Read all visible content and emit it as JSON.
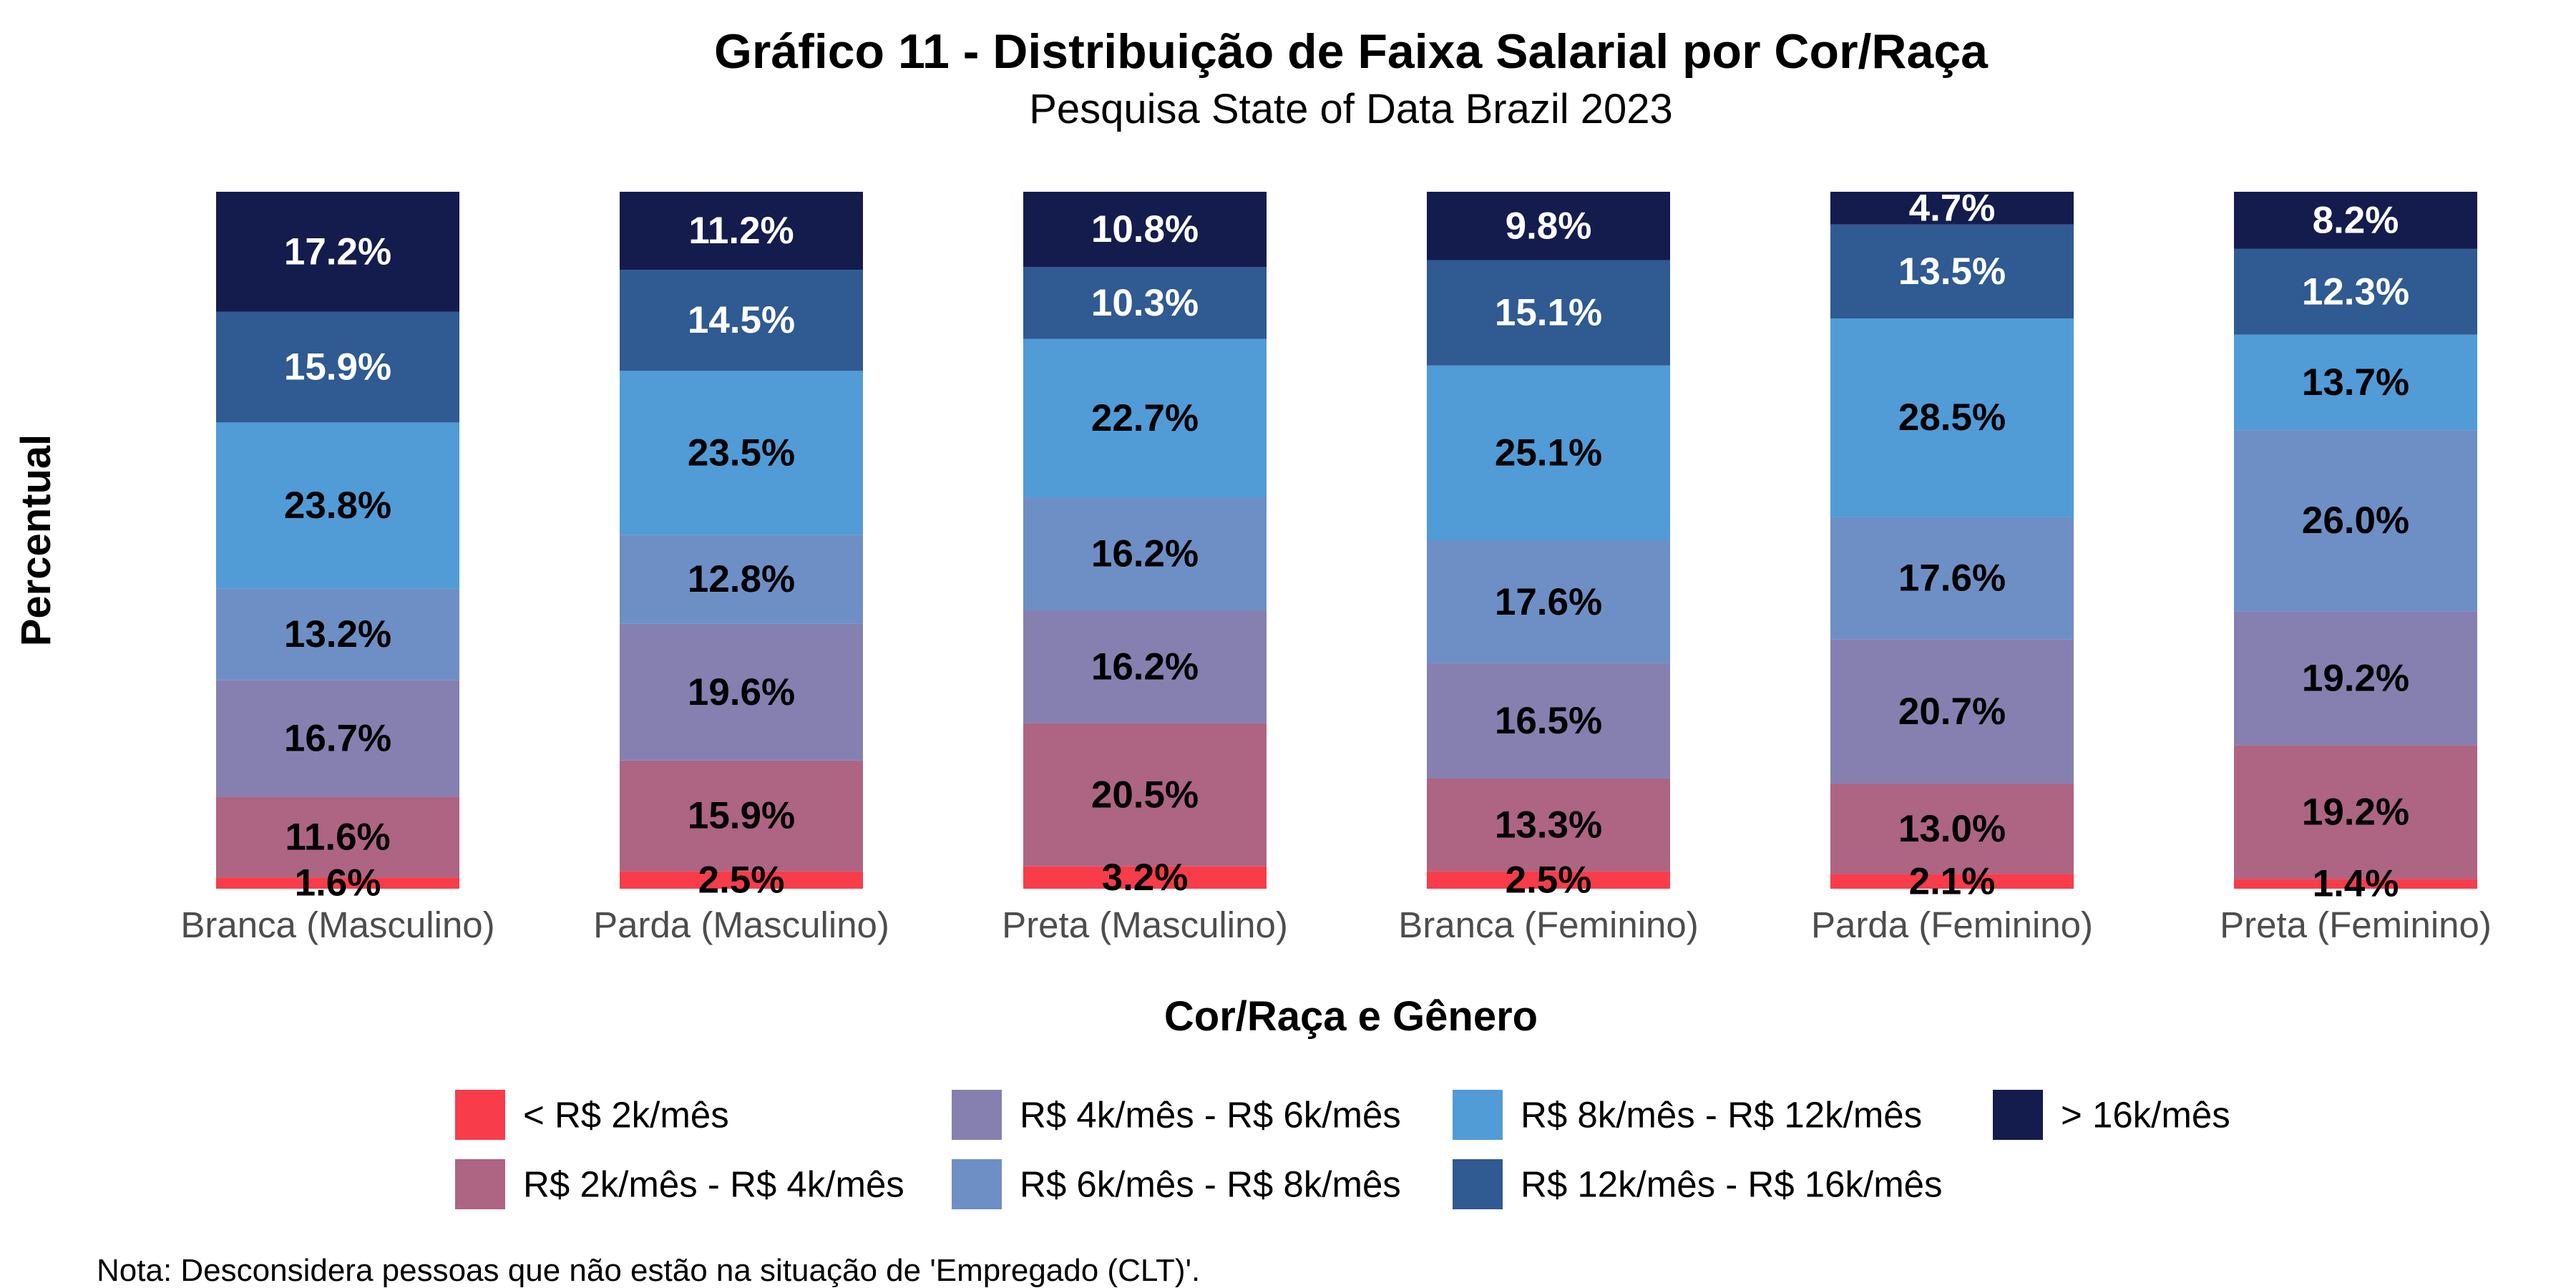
{
  "chart_data": {
    "type": "bar",
    "stacked": true,
    "percent_stacked": true,
    "title": "Gráfico 11 - Distribuição de Faixa Salarial por Cor/Raça",
    "subtitle": "Pesquisa State of Data Brazil 2023",
    "xlabel": "Cor/Raça e Gênero",
    "ylabel": "Percentual",
    "note": "Nota: Desconsidera pessoas que não estão na situação de 'Empregado (CLT)'.",
    "ylim": [
      0,
      100
    ],
    "grid": false,
    "legend_position": "bottom",
    "categories": [
      "Branca (Masculino)",
      "Parda (Masculino)",
      "Preta (Masculino)",
      "Branca (Feminino)",
      "Parda (Feminino)",
      "Preta (Feminino)"
    ],
    "series": [
      {
        "name": "< R$ 2k/mês",
        "color": "#F83C4A",
        "label_color": "#000000",
        "values": [
          1.6,
          2.5,
          3.2,
          2.5,
          2.1,
          1.4
        ]
      },
      {
        "name": "R$ 2k/mês - R$ 4k/mês",
        "color": "#AE6483",
        "label_color": "#000000",
        "values": [
          11.6,
          15.9,
          20.5,
          13.3,
          13.0,
          19.2
        ]
      },
      {
        "name": "R$ 4k/mês - R$ 6k/mês",
        "color": "#8580B0",
        "label_color": "#000000",
        "values": [
          16.7,
          19.6,
          16.2,
          16.5,
          20.7,
          19.2
        ]
      },
      {
        "name": "R$ 6k/mês - R$ 8k/mês",
        "color": "#6E8FC5",
        "label_color": "#000000",
        "values": [
          13.2,
          12.8,
          16.2,
          17.6,
          17.6,
          26.0
        ]
      },
      {
        "name": "R$ 8k/mês - R$ 12k/mês",
        "color": "#519BD7",
        "label_color": "#000000",
        "values": [
          23.8,
          23.5,
          22.7,
          25.1,
          28.5,
          13.7
        ]
      },
      {
        "name": "R$ 12k/mês - R$ 16k/mês",
        "color": "#2F5A92",
        "label_color": "#FFFFFF",
        "values": [
          15.9,
          14.5,
          10.3,
          15.1,
          13.5,
          12.3
        ]
      },
      {
        "name": "> 16k/mês",
        "color": "#141C4D",
        "label_color": "#FFFFFF",
        "values": [
          17.2,
          11.2,
          10.8,
          9.8,
          4.7,
          8.2
        ]
      }
    ],
    "legend_layout": [
      [
        0,
        2,
        4,
        6
      ],
      [
        1,
        3,
        5
      ]
    ]
  }
}
